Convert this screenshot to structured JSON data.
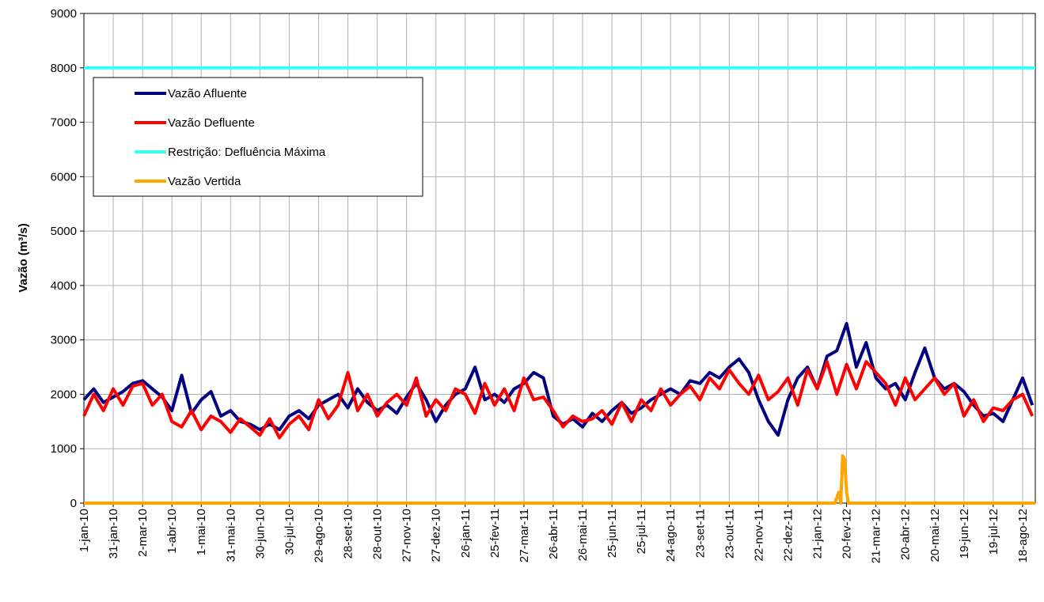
{
  "chart_data": {
    "type": "line",
    "y_label": "Vazão (m³/s)",
    "xlim": [
      0,
      973
    ],
    "ylim": [
      0,
      9000
    ],
    "yticks": [
      0,
      1000,
      2000,
      3000,
      4000,
      5000,
      6000,
      7000,
      8000,
      9000
    ],
    "xticks": [
      {
        "value": 0,
        "label": "1-jan-10"
      },
      {
        "value": 30,
        "label": "31-jan-10"
      },
      {
        "value": 60,
        "label": "2-mar-10"
      },
      {
        "value": 90,
        "label": "1-abr-10"
      },
      {
        "value": 120,
        "label": "1-mai-10"
      },
      {
        "value": 150,
        "label": "31-mai-10"
      },
      {
        "value": 180,
        "label": "30-jun-10"
      },
      {
        "value": 210,
        "label": "30-jul-10"
      },
      {
        "value": 240,
        "label": "29-ago-10"
      },
      {
        "value": 270,
        "label": "28-set-10"
      },
      {
        "value": 300,
        "label": "28-out-10"
      },
      {
        "value": 330,
        "label": "27-nov-10"
      },
      {
        "value": 360,
        "label": "27-dez-10"
      },
      {
        "value": 390,
        "label": "26-jan-11"
      },
      {
        "value": 420,
        "label": "25-fev-11"
      },
      {
        "value": 450,
        "label": "27-mar-11"
      },
      {
        "value": 480,
        "label": "26-abr-11"
      },
      {
        "value": 510,
        "label": "26-mai-11"
      },
      {
        "value": 540,
        "label": "25-jun-11"
      },
      {
        "value": 570,
        "label": "25-jul-11"
      },
      {
        "value": 600,
        "label": "24-ago-11"
      },
      {
        "value": 630,
        "label": "23-set-11"
      },
      {
        "value": 660,
        "label": "23-out-11"
      },
      {
        "value": 690,
        "label": "22-nov-11"
      },
      {
        "value": 720,
        "label": "22-dez-11"
      },
      {
        "value": 750,
        "label": "21-jan-12"
      },
      {
        "value": 780,
        "label": "20-fev-12"
      },
      {
        "value": 810,
        "label": "21-mar-12"
      },
      {
        "value": 840,
        "label": "20-abr-12"
      },
      {
        "value": 870,
        "label": "20-mai-12"
      },
      {
        "value": 900,
        "label": "19-jun-12"
      },
      {
        "value": 930,
        "label": "19-jul-12"
      },
      {
        "value": 960,
        "label": "18-ago-12"
      }
    ],
    "grid": true,
    "legend": "upper left",
    "x": [
      0,
      10,
      20,
      30,
      40,
      50,
      60,
      70,
      80,
      90,
      100,
      110,
      120,
      130,
      140,
      150,
      160,
      170,
      180,
      190,
      200,
      210,
      220,
      230,
      240,
      250,
      260,
      270,
      280,
      290,
      300,
      310,
      320,
      330,
      340,
      350,
      360,
      370,
      380,
      390,
      400,
      410,
      420,
      430,
      440,
      450,
      460,
      470,
      480,
      490,
      500,
      510,
      520,
      530,
      540,
      550,
      560,
      570,
      580,
      590,
      600,
      610,
      620,
      630,
      640,
      650,
      660,
      670,
      680,
      690,
      700,
      710,
      720,
      730,
      740,
      750,
      760,
      770,
      780,
      790,
      800,
      810,
      820,
      830,
      840,
      850,
      860,
      870,
      880,
      890,
      900,
      910,
      920,
      930,
      940,
      950,
      960,
      970
    ],
    "series": [
      {
        "name": "Vazão Afluente",
        "color": "#000080",
        "values": [
          1900,
          2100,
          1850,
          1950,
          2050,
          2200,
          2250,
          2100,
          1950,
          1700,
          2350,
          1650,
          1900,
          2050,
          1600,
          1700,
          1500,
          1450,
          1350,
          1450,
          1350,
          1600,
          1700,
          1550,
          1800,
          1900,
          2000,
          1750,
          2100,
          1850,
          1700,
          1800,
          1650,
          1950,
          2200,
          1900,
          1500,
          1800,
          2000,
          2100,
          2500,
          1900,
          2000,
          1850,
          2100,
          2200,
          2400,
          2300,
          1600,
          1450,
          1550,
          1400,
          1650,
          1500,
          1700,
          1850,
          1650,
          1750,
          1900,
          2000,
          2100,
          2000,
          2250,
          2200,
          2400,
          2300,
          2500,
          2650,
          2400,
          1900,
          1500,
          1250,
          1900,
          2300,
          2500,
          2100,
          2700,
          2800,
          3300,
          2500,
          2950,
          2300,
          2100,
          2200,
          1900,
          2400,
          2850,
          2300,
          2100,
          2200,
          2050,
          1800,
          1600,
          1650,
          1500,
          1900,
          2300,
          1800
        ]
      },
      {
        "name": "Vazão Defluente",
        "color": "#ff0000",
        "values": [
          1600,
          2000,
          1700,
          2100,
          1800,
          2150,
          2200,
          1800,
          2000,
          1500,
          1400,
          1700,
          1350,
          1600,
          1500,
          1300,
          1550,
          1400,
          1250,
          1550,
          1200,
          1450,
          1600,
          1350,
          1900,
          1550,
          1800,
          2400,
          1700,
          2000,
          1600,
          1850,
          2000,
          1800,
          2300,
          1600,
          1900,
          1700,
          2100,
          2000,
          1650,
          2200,
          1800,
          2100,
          1700,
          2300,
          1900,
          1950,
          1700,
          1400,
          1600,
          1500,
          1550,
          1700,
          1450,
          1850,
          1500,
          1900,
          1700,
          2100,
          1800,
          2000,
          2150,
          1900,
          2300,
          2100,
          2450,
          2200,
          2000,
          2350,
          1900,
          2050,
          2300,
          1800,
          2450,
          2100,
          2600,
          2000,
          2550,
          2100,
          2600,
          2400,
          2200,
          1800,
          2300,
          1900,
          2100,
          2300,
          2000,
          2200,
          1600,
          1900,
          1500,
          1750,
          1700,
          1900,
          2000,
          1600
        ]
      },
      {
        "name": "Restrição: Defluência Máxima",
        "color": "#33ffff",
        "x": [
          0,
          973
        ],
        "values": [
          8000,
          8000
        ]
      },
      {
        "name": "Vazão Vertida",
        "color": "#ffa500",
        "x": [
          0,
          768,
          772,
          774,
          776,
          778,
          780,
          782,
          973
        ],
        "values": [
          0,
          0,
          200,
          0,
          870,
          800,
          200,
          0,
          0
        ]
      }
    ]
  }
}
